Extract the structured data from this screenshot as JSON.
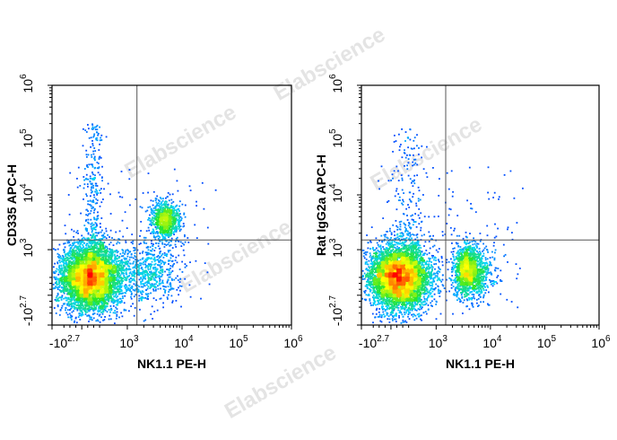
{
  "watermark": "Elabscience",
  "watermark_mark": "®",
  "chart_data": [
    {
      "type": "scatter",
      "xlabel": "NK1.1 PE-H",
      "ylabel": "CD335 APC-H",
      "xscale": "biexponential",
      "yscale": "biexponential",
      "xlim": [
        -501,
        1000000
      ],
      "ylim": [
        -501,
        1000000
      ],
      "x_ticks": [
        {
          "base": "-10",
          "exp": "2.7"
        },
        {
          "base": "10",
          "exp": "3"
        },
        {
          "base": "10",
          "exp": "4"
        },
        {
          "base": "10",
          "exp": "5"
        },
        {
          "base": "10",
          "exp": "6"
        }
      ],
      "y_ticks": [
        {
          "base": "-10",
          "exp": "2.7"
        },
        {
          "base": "10",
          "exp": "3"
        },
        {
          "base": "10",
          "exp": "4"
        },
        {
          "base": "10",
          "exp": "5"
        },
        {
          "base": "10",
          "exp": "6"
        }
      ],
      "quadrant_gate": {
        "x": 1500,
        "y": 1500
      },
      "populations": [
        {
          "x": 150,
          "y": 300,
          "density": "very high"
        },
        {
          "x": 5000,
          "y": 3500,
          "density": "medium"
        },
        {
          "x": 2500,
          "y": 400,
          "density": "low"
        }
      ],
      "color_scale": [
        "blue",
        "cyan",
        "green",
        "yellow",
        "orange",
        "red"
      ]
    },
    {
      "type": "scatter",
      "xlabel": "NK1.1 PE-H",
      "ylabel": "Rat IgG2a APC-H",
      "xscale": "biexponential",
      "yscale": "biexponential",
      "xlim": [
        -501,
        1000000
      ],
      "ylim": [
        -501,
        1000000
      ],
      "x_ticks": [
        {
          "base": "-10",
          "exp": "2.7"
        },
        {
          "base": "10",
          "exp": "3"
        },
        {
          "base": "10",
          "exp": "4"
        },
        {
          "base": "10",
          "exp": "5"
        },
        {
          "base": "10",
          "exp": "6"
        }
      ],
      "y_ticks": [
        {
          "base": "-10",
          "exp": "2.7"
        },
        {
          "base": "10",
          "exp": "3"
        },
        {
          "base": "10",
          "exp": "4"
        },
        {
          "base": "10",
          "exp": "5"
        },
        {
          "base": "10",
          "exp": "6"
        }
      ],
      "quadrant_gate": {
        "x": 1500,
        "y": 1500
      },
      "populations": [
        {
          "x": 150,
          "y": 300,
          "density": "very high"
        },
        {
          "x": 3500,
          "y": 400,
          "density": "medium"
        }
      ],
      "color_scale": [
        "blue",
        "cyan",
        "green",
        "yellow",
        "orange",
        "red"
      ]
    }
  ]
}
